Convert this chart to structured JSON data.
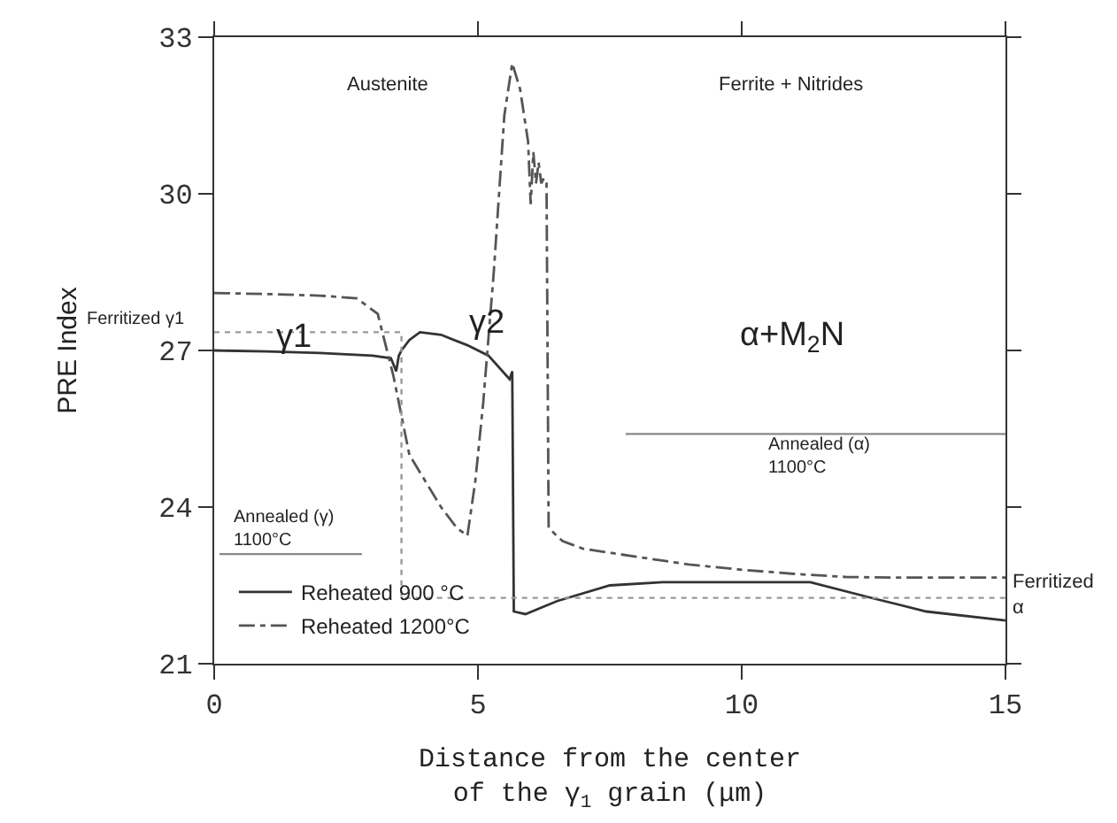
{
  "chart_data": {
    "type": "line",
    "xlabel": "Distance from the center\nof the γ$_{1}$ grain (μm)",
    "ylabel": "PRE Index",
    "xlim": [
      0,
      15
    ],
    "xticks": [
      0,
      5,
      10,
      15
    ],
    "ylim": [
      21,
      33
    ],
    "yticks": [
      21,
      24,
      27,
      30,
      33
    ],
    "legend": "bottom left",
    "annotations": [
      "Austenite",
      "Ferrite + Nitrides",
      "Ferritized γ1",
      "γ1",
      "γ2",
      "α+M$_{2}$N",
      "Annealed (γ)\n1100°C",
      "Annealed (α)\n1100°C",
      "Ferritized\nα"
    ],
    "series": [
      {
        "name": "Reheated 900 °C",
        "color": "#333333",
        "line_style": "solid",
        "x": [
          0,
          1,
          2,
          3,
          3.35,
          3.45,
          3.5,
          3.55,
          3.7,
          3.9,
          4.3,
          4.8,
          5.2,
          5.6,
          5.65,
          5.68,
          5.9,
          6.5,
          7.5,
          8.5,
          10,
          11.3,
          12.5,
          13.5,
          15
        ],
        "values": [
          27.0,
          26.98,
          26.95,
          26.9,
          26.85,
          26.6,
          26.9,
          27.0,
          27.2,
          27.35,
          27.3,
          27.1,
          26.9,
          26.45,
          26.6,
          22.0,
          21.95,
          22.2,
          22.5,
          22.56,
          22.56,
          22.56,
          22.25,
          22.0,
          21.83
        ]
      },
      {
        "name": "Reheated 1200°C",
        "color": "#555555",
        "line_style": "dashdot",
        "x": [
          0,
          1,
          2,
          2.7,
          3.1,
          3.4,
          3.7,
          4.0,
          4.3,
          4.6,
          4.8,
          4.95,
          5.1,
          5.3,
          5.5,
          5.65,
          5.8,
          5.95,
          6.0,
          6.05,
          6.1,
          6.15,
          6.2,
          6.25,
          6.3,
          6.34,
          6.6,
          7,
          8,
          9,
          10,
          11,
          12,
          13,
          15
        ],
        "values": [
          28.1,
          28.08,
          28.05,
          28.0,
          27.7,
          26.5,
          25.0,
          24.5,
          24.0,
          23.6,
          23.45,
          24.5,
          26.0,
          28.5,
          31.5,
          32.5,
          32.0,
          31.0,
          29.8,
          30.8,
          30.2,
          30.6,
          30.2,
          30.3,
          30.2,
          23.6,
          23.35,
          23.2,
          23.05,
          22.9,
          22.8,
          22.72,
          22.66,
          22.65,
          22.65
        ]
      },
      {
        "color": "#999999",
        "line_style": "dotted",
        "x": [
          0,
          3.55,
          3.55,
          15
        ],
        "values": [
          27.35,
          27.35,
          22.26,
          22.26
        ]
      },
      {
        "color": "#888888",
        "line_style": "solid",
        "x": [
          0.1,
          2.8
        ],
        "values": [
          23.1,
          23.1
        ]
      },
      {
        "color": "#888888",
        "line_style": "solid",
        "x": [
          7.8,
          15
        ],
        "values": [
          25.4,
          25.4
        ]
      }
    ]
  }
}
